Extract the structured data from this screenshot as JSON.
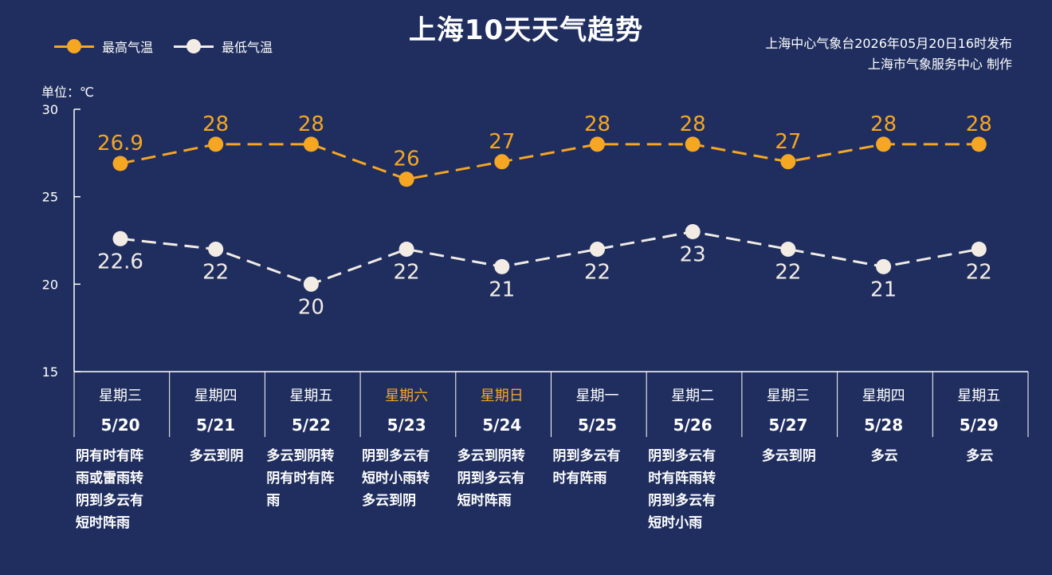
{
  "title": "上海10天天气趋势",
  "issuer": {
    "line1": "上海中心气象台2026年05月20日16时发布",
    "line2": "上海市气象服务中心  制作"
  },
  "legend": {
    "high_label": "最高气温",
    "low_label": "最低气温"
  },
  "unit_label": "单位：℃",
  "colors": {
    "background": "#1f2e5e",
    "high": "#f5a623",
    "low": "#f2ece4",
    "weekend": "#f5a623",
    "axis": "#ffffff"
  },
  "chart_data": {
    "type": "line",
    "title": "上海10天天气趋势",
    "ylabel": "单位：℃",
    "ylim": [
      15,
      30
    ],
    "yticks": [
      "15",
      "20",
      "25",
      "30"
    ],
    "grid": false,
    "legend_position": "top-left",
    "categories": [
      "5/20",
      "5/21",
      "5/22",
      "5/23",
      "5/24",
      "5/25",
      "5/26",
      "5/27",
      "5/28",
      "5/29"
    ],
    "weekdays": [
      "星期三",
      "星期四",
      "星期五",
      "星期六",
      "星期日",
      "星期一",
      "星期二",
      "星期三",
      "星期四",
      "星期五"
    ],
    "weekend": [
      false,
      false,
      false,
      true,
      true,
      false,
      false,
      false,
      false,
      false
    ],
    "series": [
      {
        "name": "最高气温",
        "values": [
          26.9,
          28,
          28,
          26,
          27,
          28,
          28,
          27,
          28,
          28
        ],
        "labels": [
          "26.9",
          "28",
          "28",
          "26",
          "27",
          "28",
          "28",
          "27",
          "28",
          "28"
        ]
      },
      {
        "name": "最低气温",
        "values": [
          22.6,
          22,
          20,
          22,
          21,
          22,
          23,
          22,
          21,
          22
        ],
        "labels": [
          "22.6",
          "22",
          "20",
          "22",
          "21",
          "22",
          "23",
          "22",
          "21",
          "22"
        ]
      }
    ],
    "weather": [
      [
        "阴有时有阵",
        "雨或雷雨转",
        "阴到多云有",
        "短时阵雨"
      ],
      [
        "多云到阴"
      ],
      [
        "多云到阴转",
        "阴有时有阵",
        "雨"
      ],
      [
        "阴到多云有",
        "短时小雨转",
        "多云到阴"
      ],
      [
        "多云到阴转",
        "阴到多云有",
        "短时阵雨"
      ],
      [
        "阴到多云有",
        "时有阵雨"
      ],
      [
        "阴到多云有",
        "时有阵雨转",
        "阴到多云有",
        "短时小雨"
      ],
      [
        "多云到阴"
      ],
      [
        "多云"
      ],
      [
        "多云"
      ]
    ]
  }
}
